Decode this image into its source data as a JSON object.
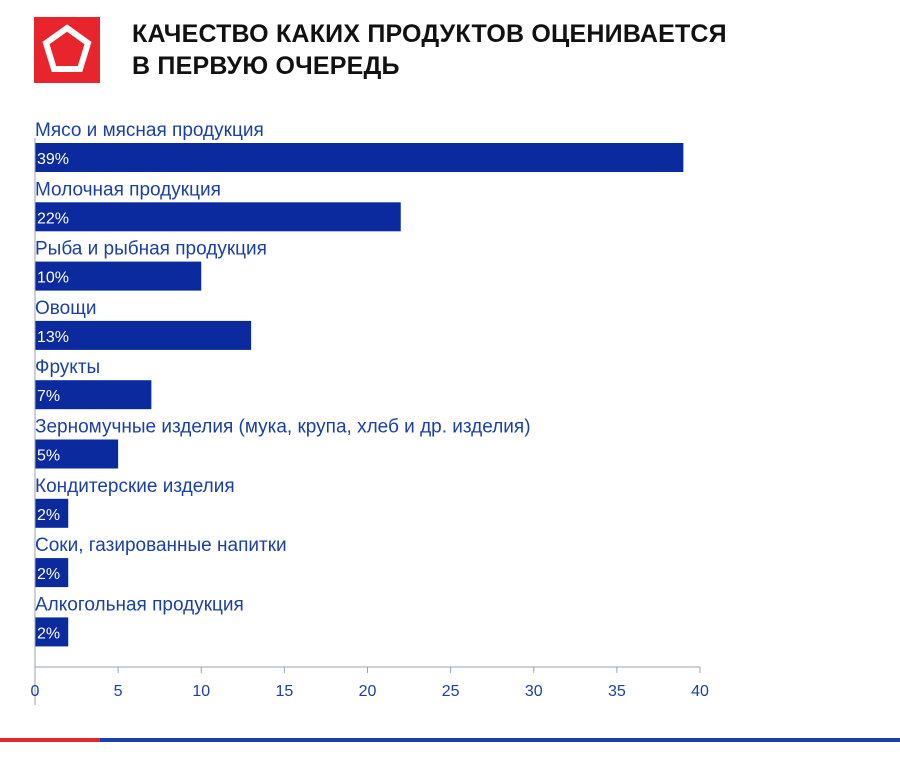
{
  "title": {
    "line1": "КАЧЕСТВО КАКИХ ПРОДУКТОВ ОЦЕНИВАЕТСЯ",
    "line2": "В ПЕРВУЮ ОЧЕРЕДЬ"
  },
  "colors": {
    "bar": "#0a2a9e",
    "label": "#1a3fa8",
    "accent": "#e8242c"
  },
  "logo": {
    "icon": "pentagon-icon"
  },
  "chart_data": {
    "type": "bar",
    "orientation": "horizontal",
    "categories": [
      "Мясо и мясная продукция",
      "Молочная продукция",
      "Рыба и рыбная продукция",
      "Овощи",
      "Фрукты",
      "Зерномучные изделия (мука, крупа, хлеб и др. изделия)",
      "Кондитерские изделия",
      "Соки, газированные напитки",
      "Алкогольная продукция"
    ],
    "values": [
      39,
      22,
      10,
      13,
      7,
      5,
      2,
      2,
      2
    ],
    "value_labels": [
      "39%",
      "22%",
      "10%",
      "13%",
      "7%",
      "5%",
      "2%",
      "2%",
      "2%"
    ],
    "xlim": [
      0,
      40
    ],
    "x_ticks": [
      0,
      5,
      10,
      15,
      20,
      25,
      30,
      35,
      40
    ],
    "grid": false
  }
}
